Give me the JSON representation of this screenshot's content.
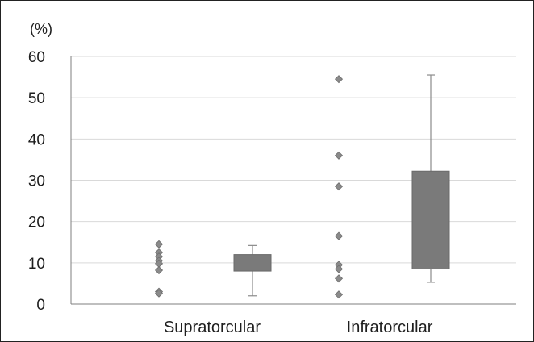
{
  "chart_data": {
    "type": "box",
    "title": "",
    "xlabel": "",
    "ylabel": "(%)",
    "ylim": [
      0,
      60
    ],
    "yticks": [
      "0",
      "10",
      "20",
      "30",
      "40",
      "50",
      "60"
    ],
    "grid": true,
    "categories": [
      "Supratorcular",
      "Infratorcular"
    ],
    "scatter_points": [
      [
        14.5,
        12.5,
        11.5,
        10.5,
        9.8,
        8.2,
        3.0,
        2.6
      ],
      [
        54.5,
        36.0,
        28.5,
        16.5,
        9.5,
        8.5,
        6.2,
        2.3
      ]
    ],
    "boxes": [
      {
        "min": 2.0,
        "q1": 8.0,
        "q3": 12.0,
        "max": 14.2
      },
      {
        "min": 5.3,
        "q1": 8.5,
        "q3": 32.2,
        "max": 55.5
      }
    ],
    "colors": {
      "box_fill": "#7a7a7a",
      "whisker": "#8a8a8a",
      "marker": "#8a8a8a",
      "grid": "#d9d9d9",
      "axis": "#7f7f7f"
    }
  }
}
